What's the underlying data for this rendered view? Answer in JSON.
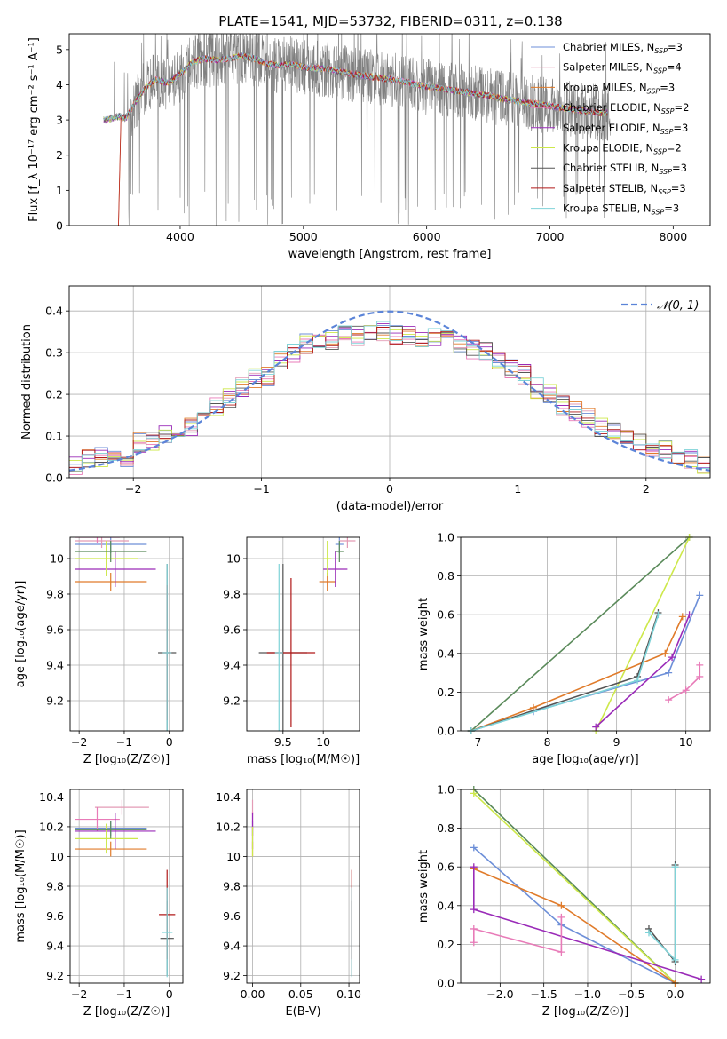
{
  "figure": {
    "title": "PLATE=1541, MJD=53732, FIBERID=0311, z=0.138"
  },
  "colors": {
    "chabrier_miles": "#6d8fd8",
    "salpeter_miles": "#e39bb5",
    "kroupa_miles": "#e07b2a",
    "chabrier_elodie": "#e87bb8",
    "salpeter_elodie": "#9a2bb8",
    "kroupa_elodie": "#cde84a",
    "chabrier_stelib": "#555555",
    "salpeter_stelib": "#b01818",
    "kroupa_stelib": "#7fd3d8",
    "kroupa_miles_mw": "#e07b2a",
    "normal_curve": "#5b84d8",
    "grid": "#b0b0b0"
  },
  "chart_data": [
    {
      "type": "line",
      "panel": "spectrum",
      "xlabel": "wavelength [Angstrom, rest frame]",
      "ylabel": "Flux [f_λ 10⁻¹⁷ erg cm⁻² s⁻¹ A⁻¹]",
      "xlim": [
        3100,
        8300
      ],
      "ylim": [
        0,
        5.45
      ],
      "xticks": [
        4000,
        5000,
        6000,
        7000,
        8000
      ],
      "yticks": [
        0,
        1,
        2,
        3,
        4,
        5
      ],
      "grid": false,
      "legend_position": "top-right",
      "data_color": "#808080",
      "x_start": 3380,
      "x_end": 7490,
      "model_shape": [
        [
          3380,
          3.0
        ],
        [
          3450,
          3.05
        ],
        [
          3500,
          3.1
        ],
        [
          3560,
          3.05
        ],
        [
          3620,
          3.4
        ],
        [
          3700,
          3.85
        ],
        [
          3800,
          4.15
        ],
        [
          3900,
          4.05
        ],
        [
          4000,
          4.3
        ],
        [
          4100,
          4.65
        ],
        [
          4200,
          4.75
        ],
        [
          4300,
          4.7
        ],
        [
          4400,
          4.75
        ],
        [
          4500,
          4.82
        ],
        [
          4600,
          4.75
        ],
        [
          4700,
          4.6
        ],
        [
          4800,
          4.55
        ],
        [
          4900,
          4.6
        ],
        [
          5000,
          4.5
        ],
        [
          5200,
          4.45
        ],
        [
          5400,
          4.3
        ],
        [
          5600,
          4.2
        ],
        [
          5800,
          4.1
        ],
        [
          6000,
          3.95
        ],
        [
          6200,
          3.85
        ],
        [
          6400,
          3.75
        ],
        [
          6600,
          3.62
        ],
        [
          6800,
          3.5
        ],
        [
          7000,
          3.4
        ],
        [
          7200,
          3.3
        ],
        [
          7400,
          3.2
        ]
      ],
      "legend": [
        {
          "label": "Chabrier MILES, N",
          "sub": "SSP",
          "tail": "=3",
          "color": "#6d8fd8"
        },
        {
          "label": "Salpeter MILES, N",
          "sub": "SSP",
          "tail": "=4",
          "color": "#e39bb5"
        },
        {
          "label": "Kroupa MILES, N",
          "sub": "SSP",
          "tail": "=3",
          "color": "#e07b2a"
        },
        {
          "label": "Chabrier ELODIE, N",
          "sub": "SSP",
          "tail": "=2",
          "color": "#e87bb8"
        },
        {
          "label": "Salpeter ELODIE, N",
          "sub": "SSP",
          "tail": "=3",
          "color": "#9a2bb8"
        },
        {
          "label": "Kroupa ELODIE, N",
          "sub": "SSP",
          "tail": "=2",
          "color": "#cde84a"
        },
        {
          "label": "Chabrier STELIB, N",
          "sub": "SSP",
          "tail": "=3",
          "color": "#555555"
        },
        {
          "label": "Salpeter STELIB, N",
          "sub": "SSP",
          "tail": "=3",
          "color": "#b01818"
        },
        {
          "label": "Kroupa STELIB, N",
          "sub": "SSP",
          "tail": "=3",
          "color": "#7fd3d8"
        }
      ]
    },
    {
      "type": "step",
      "panel": "residual_histogram",
      "xlabel": "(data-model)/error",
      "ylabel": "Normed distribution",
      "xlim": [
        -2.5,
        2.5
      ],
      "ylim": [
        0,
        0.46
      ],
      "xticks": [
        -2,
        -1,
        0,
        1,
        2
      ],
      "yticks": [
        0.0,
        0.1,
        0.2,
        0.3,
        0.4
      ],
      "grid": true,
      "legend_position": "top-right",
      "curve_label": "𝒩(0, 1)",
      "bins": [
        -2.5,
        -2.4,
        -2.3,
        -2.2,
        -2.1,
        -2.0,
        -1.9,
        -1.8,
        -1.7,
        -1.6,
        -1.5,
        -1.4,
        -1.3,
        -1.2,
        -1.1,
        -1.0,
        -0.9,
        -0.8,
        -0.7,
        -0.6,
        -0.5,
        -0.4,
        -0.3,
        -0.2,
        -0.1,
        0.0,
        0.1,
        0.2,
        0.3,
        0.4,
        0.5,
        0.6,
        0.7,
        0.8,
        0.9,
        1.0,
        1.1,
        1.2,
        1.3,
        1.4,
        1.5,
        1.6,
        1.7,
        1.8,
        1.9,
        2.0,
        2.1,
        2.2,
        2.3,
        2.4,
        2.5
      ],
      "mean_values": [
        0.03,
        0.045,
        0.05,
        0.05,
        0.045,
        0.085,
        0.09,
        0.1,
        0.105,
        0.12,
        0.14,
        0.17,
        0.19,
        0.215,
        0.24,
        0.245,
        0.285,
        0.3,
        0.32,
        0.33,
        0.33,
        0.34,
        0.34,
        0.35,
        0.35,
        0.34,
        0.34,
        0.335,
        0.335,
        0.34,
        0.32,
        0.31,
        0.3,
        0.285,
        0.26,
        0.25,
        0.215,
        0.2,
        0.175,
        0.16,
        0.145,
        0.12,
        0.11,
        0.1,
        0.085,
        0.075,
        0.07,
        0.055,
        0.045,
        0.035
      ],
      "series": [
        {
          "name": "Chabrier MILES",
          "color": "#6d8fd8",
          "seed": 1
        },
        {
          "name": "Salpeter MILES",
          "color": "#e39bb5",
          "seed": 2
        },
        {
          "name": "Kroupa MILES",
          "color": "#e07b2a",
          "seed": 3
        },
        {
          "name": "Chabrier ELODIE",
          "color": "#e87bb8",
          "seed": 4
        },
        {
          "name": "Salpeter ELODIE",
          "color": "#9a2bb8",
          "seed": 5
        },
        {
          "name": "Kroupa ELODIE",
          "color": "#cde84a",
          "seed": 6
        },
        {
          "name": "Chabrier STELIB",
          "color": "#555555",
          "seed": 7
        },
        {
          "name": "Salpeter STELIB",
          "color": "#b01818",
          "seed": 8
        },
        {
          "name": "Kroupa STELIB",
          "color": "#7fd3d8",
          "seed": 9
        }
      ]
    },
    {
      "type": "errorbar",
      "panel": "age_vs_Z",
      "xlabel": "Z [log₁₀(Z/Z☉)]",
      "ylabel": "age  [log₁₀(age/yr)]",
      "xlim": [
        -2.2,
        0.3
      ],
      "ylim": [
        9.03,
        10.12
      ],
      "xticks": [
        -2,
        -1,
        0
      ],
      "yticks": [
        9.2,
        9.4,
        9.6,
        9.8,
        10.0
      ],
      "grid": true,
      "points": [
        {
          "x": -1.3,
          "y": 10.08,
          "xerr": 0.8,
          "yerr": 0.05,
          "color": "#6d8fd8"
        },
        {
          "x": -1.5,
          "y": 10.1,
          "xerr": 0.6,
          "yerr": 0.04,
          "color": "#e39bb5"
        },
        {
          "x": -1.3,
          "y": 9.87,
          "xerr": 0.8,
          "yerr": 0.05,
          "color": "#e07b2a"
        },
        {
          "x": -1.6,
          "y": 10.12,
          "xerr": 0.5,
          "yerr": 0.03,
          "color": "#e87bb8"
        },
        {
          "x": -1.2,
          "y": 9.94,
          "xerr": 0.9,
          "yerr": 0.1,
          "color": "#9a2bb8"
        },
        {
          "x": -1.4,
          "y": 10.0,
          "xerr": 0.7,
          "yerr": 0.1,
          "color": "#cde84a"
        },
        {
          "x": -1.3,
          "y": 10.04,
          "xerr": 0.8,
          "yerr": 0.06,
          "color": "#5a8a5a"
        },
        {
          "x": -0.05,
          "y": 9.47,
          "xerr": 0.2,
          "yerr": 0.5,
          "color": "#555555"
        },
        {
          "x": -0.05,
          "y": 9.47,
          "xerr": 0.1,
          "yerr": 0.38,
          "color": "#b01818"
        },
        {
          "x": -0.05,
          "y": 9.47,
          "xerr": 0.1,
          "yerr": 0.5,
          "color": "#7fd3d8"
        }
      ]
    },
    {
      "type": "errorbar",
      "panel": "age_vs_mass",
      "xlabel": "mass [log₁₀(M/M☉)]",
      "ylabel": "",
      "xlim": [
        9.05,
        10.45
      ],
      "ylim": [
        9.03,
        10.12
      ],
      "xticks": [
        9.5,
        10.0
      ],
      "yticks": [
        9.2,
        9.4,
        9.6,
        9.8,
        10.0
      ],
      "grid": true,
      "points": [
        {
          "x": 10.2,
          "y": 10.08,
          "xerr": 0.05,
          "yerr": 0.05,
          "color": "#6d8fd8"
        },
        {
          "x": 10.3,
          "y": 10.1,
          "xerr": 0.1,
          "yerr": 0.04,
          "color": "#e39bb5"
        },
        {
          "x": 10.05,
          "y": 9.87,
          "xerr": 0.1,
          "yerr": 0.05,
          "color": "#e07b2a"
        },
        {
          "x": 10.15,
          "y": 9.94,
          "xerr": 0.15,
          "yerr": 0.1,
          "color": "#9a2bb8"
        },
        {
          "x": 10.05,
          "y": 10.0,
          "xerr": 0.05,
          "yerr": 0.1,
          "color": "#cde84a"
        },
        {
          "x": 10.2,
          "y": 10.04,
          "xerr": 0.05,
          "yerr": 0.06,
          "color": "#5a8a5a"
        },
        {
          "x": 9.5,
          "y": 9.47,
          "xerr": 0.3,
          "yerr": 0.5,
          "color": "#555555"
        },
        {
          "x": 9.6,
          "y": 9.47,
          "xerr": 0.3,
          "yerr": 0.42,
          "color": "#b01818"
        },
        {
          "x": 9.45,
          "y": 9.47,
          "xerr": 0.05,
          "yerr": 0.5,
          "color": "#7fd3d8"
        }
      ]
    },
    {
      "type": "line",
      "panel": "massweight_vs_age",
      "xlabel": "age  [log₁₀(age/yr)]",
      "ylabel": "mass weight",
      "xlim": [
        6.75,
        10.35
      ],
      "ylim": [
        0,
        1.0
      ],
      "xticks": [
        7,
        8,
        9,
        10
      ],
      "yticks": [
        0.0,
        0.2,
        0.4,
        0.6,
        0.8,
        1.0
      ],
      "grid": true,
      "series": [
        {
          "color": "#5a8a5a",
          "x": [
            6.9,
            10.05
          ],
          "y": [
            0.0,
            1.0
          ]
        },
        {
          "color": "#cde84a",
          "x": [
            8.7,
            10.05
          ],
          "y": [
            0.0,
            1.0
          ]
        },
        {
          "color": "#6d8fd8",
          "x": [
            6.9,
            7.8,
            9.75,
            10.2
          ],
          "y": [
            0.0,
            0.1,
            0.3,
            0.7
          ]
        },
        {
          "color": "#e07b2a",
          "x": [
            6.9,
            7.8,
            9.7,
            9.95
          ],
          "y": [
            0.0,
            0.12,
            0.4,
            0.59
          ]
        },
        {
          "color": "#9a2bb8",
          "x": [
            8.7,
            9.8,
            10.05
          ],
          "y": [
            0.02,
            0.38,
            0.6
          ]
        },
        {
          "color": "#e87bb8",
          "x": [
            9.75,
            10.0,
            10.2,
            10.2
          ],
          "y": [
            0.16,
            0.21,
            0.28,
            0.34
          ]
        },
        {
          "color": "#555555",
          "x": [
            6.9,
            9.3,
            9.6
          ],
          "y": [
            0.0,
            0.28,
            0.61
          ]
        },
        {
          "color": "#7fd3d8",
          "x": [
            6.9,
            9.3,
            9.6
          ],
          "y": [
            0.0,
            0.26,
            0.6
          ]
        }
      ]
    },
    {
      "type": "errorbar",
      "panel": "mass_vs_Z",
      "xlabel": "Z [log₁₀(Z/Z☉)]",
      "ylabel": "mass [log₁₀(M/M☉)]",
      "xlim": [
        -2.2,
        0.3
      ],
      "ylim": [
        9.15,
        10.45
      ],
      "xticks": [
        -2,
        -1,
        0
      ],
      "yticks": [
        9.2,
        9.4,
        9.6,
        9.8,
        10.0,
        10.2,
        10.4
      ],
      "grid": true,
      "points": [
        {
          "x": -1.3,
          "y": 10.19,
          "xerr": 0.8,
          "yerr": 0.05,
          "color": "#6d8fd8"
        },
        {
          "x": -1.05,
          "y": 10.33,
          "xerr": 0.6,
          "yerr": 0.05,
          "color": "#e39bb5"
        },
        {
          "x": -1.3,
          "y": 10.05,
          "xerr": 0.8,
          "yerr": 0.05,
          "color": "#e07b2a"
        },
        {
          "x": -1.6,
          "y": 10.25,
          "xerr": 0.5,
          "yerr": 0.08,
          "color": "#e87bb8"
        },
        {
          "x": -1.2,
          "y": 10.17,
          "xerr": 0.9,
          "yerr": 0.12,
          "color": "#9a2bb8"
        },
        {
          "x": -1.4,
          "y": 10.12,
          "xerr": 0.7,
          "yerr": 0.1,
          "color": "#cde84a"
        },
        {
          "x": -1.3,
          "y": 10.18,
          "xerr": 0.8,
          "yerr": 0.06,
          "color": "#5a8a5a"
        },
        {
          "x": -0.05,
          "y": 9.45,
          "xerr": 0.15,
          "yerr": 0.25,
          "color": "#555555"
        },
        {
          "x": -0.05,
          "y": 9.61,
          "xerr": 0.18,
          "yerr": 0.3,
          "color": "#b01818"
        },
        {
          "x": -0.05,
          "y": 9.49,
          "xerr": 0.12,
          "yerr": 0.3,
          "color": "#7fd3d8"
        }
      ]
    },
    {
      "type": "errorbar",
      "panel": "mass_vs_EBV",
      "xlabel": "E(B-V)",
      "ylabel": "",
      "xlim": [
        -0.006,
        0.111
      ],
      "ylim": [
        9.15,
        10.45
      ],
      "xticks": [
        0.0,
        0.05,
        0.1
      ],
      "yticks": [
        9.2,
        9.4,
        9.6,
        9.8,
        10.0,
        10.2,
        10.4
      ],
      "grid": true,
      "points": [
        {
          "x": 0.0,
          "y": 10.19,
          "xerr": 0.0,
          "yerr": 0.05,
          "color": "#6d8fd8"
        },
        {
          "x": 0.0,
          "y": 10.33,
          "xerr": 0.0,
          "yerr": 0.05,
          "color": "#e39bb5"
        },
        {
          "x": 0.0,
          "y": 10.05,
          "xerr": 0.0,
          "yerr": 0.05,
          "color": "#e07b2a"
        },
        {
          "x": 0.0,
          "y": 10.22,
          "xerr": 0.0,
          "yerr": 0.08,
          "color": "#e87bb8"
        },
        {
          "x": 0.0,
          "y": 10.17,
          "xerr": 0.0,
          "yerr": 0.12,
          "color": "#9a2bb8"
        },
        {
          "x": 0.0,
          "y": 10.1,
          "xerr": 0.0,
          "yerr": 0.1,
          "color": "#cde84a"
        },
        {
          "x": 0.103,
          "y": 9.45,
          "xerr": 0.0,
          "yerr": 0.25,
          "color": "#555555"
        },
        {
          "x": 0.103,
          "y": 9.61,
          "xerr": 0.0,
          "yerr": 0.3,
          "color": "#b01818"
        },
        {
          "x": 0.103,
          "y": 9.49,
          "xerr": 0.0,
          "yerr": 0.3,
          "color": "#7fd3d8"
        }
      ]
    },
    {
      "type": "line",
      "panel": "massweight_vs_Z",
      "xlabel": "Z [log₁₀(Z/Z☉)]",
      "ylabel": "mass weight",
      "xlim": [
        -2.45,
        0.4
      ],
      "ylim": [
        0,
        1.0
      ],
      "xticks": [
        -2.0,
        -1.5,
        -1.0,
        -0.5,
        0.0
      ],
      "yticks": [
        0.0,
        0.2,
        0.4,
        0.6,
        0.8,
        1.0
      ],
      "grid": true,
      "series": [
        {
          "color": "#5a8a5a",
          "x": [
            -2.3,
            0.0
          ],
          "y": [
            1.0,
            0.0
          ]
        },
        {
          "color": "#cde84a",
          "x": [
            -2.3,
            0.0
          ],
          "y": [
            0.98,
            0.0
          ]
        },
        {
          "color": "#6d8fd8",
          "x": [
            -2.3,
            -1.3,
            0.0
          ],
          "y": [
            0.7,
            0.3,
            0.0
          ]
        },
        {
          "color": "#e07b2a",
          "x": [
            -2.3,
            -1.3,
            0.0
          ],
          "y": [
            0.59,
            0.4,
            0.0
          ]
        },
        {
          "color": "#9a2bb8",
          "x": [
            -2.3,
            -2.3,
            0.3
          ],
          "y": [
            0.6,
            0.38,
            0.02
          ]
        },
        {
          "color": "#e87bb8",
          "x": [
            -2.3,
            -2.3,
            -1.3,
            -1.3
          ],
          "y": [
            0.21,
            0.28,
            0.16,
            0.34
          ]
        },
        {
          "color": "#555555",
          "x": [
            -0.3,
            0.0,
            0.0
          ],
          "y": [
            0.28,
            0.11,
            0.61
          ]
        },
        {
          "color": "#7fd3d8",
          "x": [
            -0.3,
            0.0,
            0.0
          ],
          "y": [
            0.26,
            0.12,
            0.6
          ]
        }
      ]
    }
  ]
}
